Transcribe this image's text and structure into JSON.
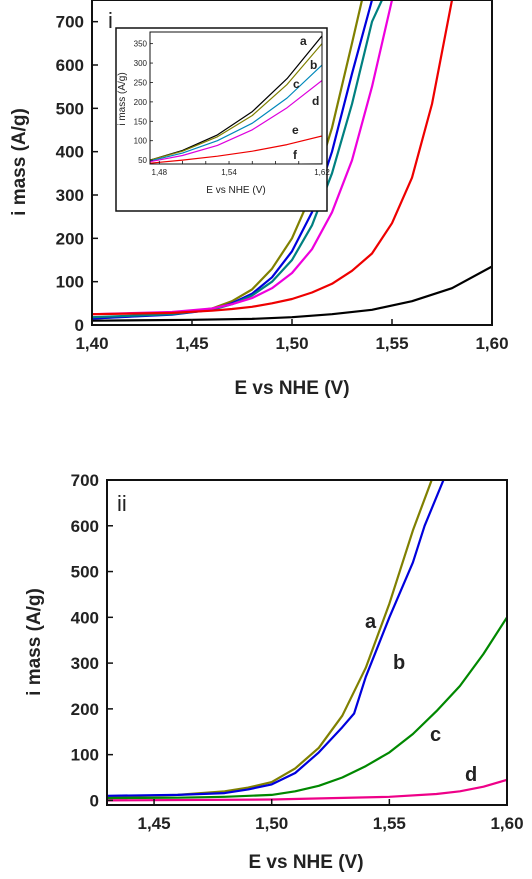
{
  "chart_data": [
    {
      "id": "panel-i",
      "type": "line",
      "panel_label": "i",
      "xlabel": "E vs NHE (V)",
      "ylabel": "i mass (A/g)",
      "xlim": [
        1.4,
        1.6
      ],
      "ylim": [
        0,
        750
      ],
      "xticks": [
        1.4,
        1.45,
        1.5,
        1.55,
        1.6
      ],
      "xtick_labels": [
        "1,40",
        "1,45",
        "1,50",
        "1,55",
        "1,60"
      ],
      "yticks": [
        0,
        100,
        200,
        300,
        400,
        500,
        600,
        700
      ],
      "ytick_labels": [
        "0",
        "100",
        "200",
        "300",
        "400",
        "500",
        "600",
        "700"
      ],
      "grid": false,
      "series": [
        {
          "color": "#808000",
          "x": [
            1.4,
            1.44,
            1.46,
            1.47,
            1.48,
            1.49,
            1.5,
            1.51,
            1.52,
            1.53,
            1.535
          ],
          "y": [
            15,
            25,
            38,
            55,
            82,
            130,
            200,
            305,
            455,
            650,
            750
          ]
        },
        {
          "color": "#0000dd",
          "x": [
            1.4,
            1.44,
            1.46,
            1.47,
            1.48,
            1.49,
            1.5,
            1.51,
            1.52,
            1.53,
            1.54
          ],
          "y": [
            15,
            24,
            35,
            50,
            72,
            110,
            170,
            260,
            400,
            580,
            750
          ]
        },
        {
          "color": "#008080",
          "x": [
            1.4,
            1.44,
            1.46,
            1.47,
            1.48,
            1.49,
            1.5,
            1.51,
            1.52,
            1.53,
            1.54,
            1.545
          ],
          "y": [
            18,
            25,
            35,
            48,
            68,
            100,
            150,
            230,
            350,
            510,
            700,
            750
          ]
        },
        {
          "color": "#ee00dd",
          "x": [
            1.4,
            1.44,
            1.46,
            1.47,
            1.48,
            1.49,
            1.5,
            1.51,
            1.52,
            1.53,
            1.54,
            1.55
          ],
          "y": [
            25,
            30,
            38,
            48,
            62,
            85,
            120,
            175,
            260,
            380,
            550,
            750
          ]
        },
        {
          "color": "#ee0000",
          "x": [
            1.4,
            1.44,
            1.46,
            1.47,
            1.48,
            1.49,
            1.5,
            1.51,
            1.52,
            1.53,
            1.54,
            1.55,
            1.56,
            1.57,
            1.58
          ],
          "y": [
            25,
            28,
            33,
            37,
            42,
            50,
            60,
            75,
            95,
            125,
            165,
            235,
            340,
            510,
            750
          ]
        },
        {
          "color": "#000000",
          "x": [
            1.4,
            1.45,
            1.48,
            1.5,
            1.52,
            1.54,
            1.56,
            1.58,
            1.6
          ],
          "y": [
            10,
            12,
            14,
            18,
            25,
            35,
            55,
            85,
            135
          ]
        }
      ],
      "inset": {
        "xlabel": "E vs NHE (V)",
        "ylabel": "i mass (A/g)",
        "xlim": [
          1.472,
          1.62
        ],
        "ylim": [
          40,
          380
        ],
        "xticks": [
          1.48,
          1.5,
          1.52,
          1.54,
          1.56,
          1.58,
          1.6,
          1.62
        ],
        "xtick_labels": [
          "1,48",
          "",
          "",
          "1,54",
          "",
          "",
          "",
          "1,62"
        ],
        "yticks": [
          50,
          100,
          150,
          200,
          250,
          300,
          350
        ],
        "ytick_labels": [
          "50",
          "100",
          "150",
          "200",
          "250",
          "300",
          "350"
        ],
        "series": [
          {
            "label": "a",
            "color": "#000000",
            "x": [
              1.472,
              1.5,
              1.53,
              1.56,
              1.59,
              1.62
            ],
            "y": [
              50,
              75,
              115,
              175,
              260,
              370
            ]
          },
          {
            "label": "b",
            "color": "#808000",
            "x": [
              1.472,
              1.5,
              1.53,
              1.56,
              1.59,
              1.62
            ],
            "y": [
              50,
              73,
              110,
              165,
              245,
              350
            ]
          },
          {
            "label": "c",
            "color": "#0088bb",
            "x": [
              1.472,
              1.5,
              1.53,
              1.56,
              1.59,
              1.62
            ],
            "y": [
              48,
              68,
              100,
              145,
              210,
              295
            ]
          },
          {
            "label": "d",
            "color": "#dd00dd",
            "x": [
              1.472,
              1.5,
              1.53,
              1.56,
              1.59,
              1.62
            ],
            "y": [
              46,
              62,
              88,
              128,
              185,
              255
            ]
          },
          {
            "label": "e",
            "color": "#ee0000",
            "x": [
              1.472,
              1.5,
              1.53,
              1.56,
              1.59,
              1.62
            ],
            "y": [
              42,
              50,
              60,
              73,
              90,
              112
            ]
          },
          {
            "label": "f",
            "color": "#000000",
            "x": [
              1.472,
              1.62
            ],
            "y": [
              38,
              40
            ]
          }
        ]
      }
    },
    {
      "id": "panel-ii",
      "type": "line",
      "panel_label": "ii",
      "xlabel": "E vs NHE (V)",
      "ylabel": "i mass (A/g)",
      "xlim": [
        1.43,
        1.6
      ],
      "ylim": [
        -10,
        700
      ],
      "xticks": [
        1.45,
        1.5,
        1.55,
        1.6
      ],
      "xtick_labels": [
        "1,45",
        "1,50",
        "1,55",
        "1,60"
      ],
      "yticks": [
        0,
        100,
        200,
        300,
        400,
        500,
        600,
        700
      ],
      "ytick_labels": [
        "0",
        "100",
        "200",
        "300",
        "400",
        "500",
        "600",
        "700"
      ],
      "grid": false,
      "series": [
        {
          "label": "a",
          "color": "#808000",
          "x": [
            1.43,
            1.46,
            1.48,
            1.49,
            1.5,
            1.51,
            1.52,
            1.53,
            1.54,
            1.55,
            1.56,
            1.568
          ],
          "y": [
            8,
            12,
            20,
            28,
            40,
            70,
            115,
            185,
            290,
            430,
            590,
            700
          ]
        },
        {
          "label": "b",
          "color": "#0000dd",
          "x": [
            1.43,
            1.46,
            1.48,
            1.49,
            1.5,
            1.51,
            1.52,
            1.53,
            1.535,
            1.54,
            1.55,
            1.56,
            1.565,
            1.573
          ],
          "y": [
            10,
            12,
            16,
            24,
            35,
            60,
            105,
            160,
            190,
            270,
            400,
            520,
            600,
            700
          ]
        },
        {
          "label": "c",
          "color": "#008800",
          "x": [
            1.43,
            1.46,
            1.48,
            1.5,
            1.51,
            1.52,
            1.53,
            1.54,
            1.55,
            1.56,
            1.57,
            1.58,
            1.59,
            1.6
          ],
          "y": [
            5,
            6,
            8,
            12,
            20,
            32,
            50,
            75,
            105,
            145,
            195,
            250,
            320,
            400
          ]
        },
        {
          "label": "d",
          "color": "#ee0088",
          "x": [
            1.43,
            1.5,
            1.55,
            1.57,
            1.58,
            1.59,
            1.6
          ],
          "y": [
            0,
            2,
            8,
            14,
            20,
            30,
            45
          ]
        }
      ]
    }
  ]
}
